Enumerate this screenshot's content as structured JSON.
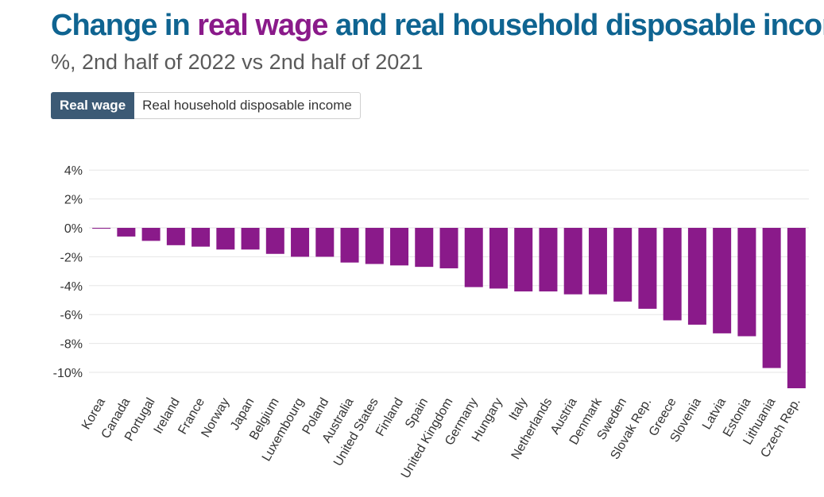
{
  "title": {
    "part1": "Change in ",
    "part2": "real wage",
    "part3": " and real household disposable income"
  },
  "subtitle": "%, 2nd half of 2022 vs 2nd half of 2021",
  "tabs": [
    {
      "label": "Real wage",
      "active": true
    },
    {
      "label": "Real household disposable income",
      "active": false
    }
  ],
  "colors": {
    "title_blue": "#0f6491",
    "title_purple": "#8a1a8a",
    "bar": "#8a1a8a",
    "tab_active_bg": "#3c5a75",
    "gridline": "#e6e6e6"
  },
  "chart_data": {
    "type": "bar",
    "title": "Change in real wage and real household disposable income",
    "subtitle": "%, 2nd half of 2022 vs 2nd half of 2021",
    "series_name": "Real wage",
    "categories": [
      "Korea",
      "Canada",
      "Portugal",
      "Ireland",
      "France",
      "Norway",
      "Japan",
      "Belgium",
      "Luxembourg",
      "Poland",
      "Australia",
      "United States",
      "Finland",
      "Spain",
      "United Kingdom",
      "Germany",
      "Hungary",
      "Italy",
      "Netherlands",
      "Austria",
      "Denmark",
      "Sweden",
      "Slovak Rep.",
      "Greece",
      "Slovenia",
      "Latvia",
      "Estonia",
      "Lithuania",
      "Czech Rep."
    ],
    "values": [
      0.0,
      -0.6,
      -0.9,
      -1.2,
      -1.3,
      -1.5,
      -1.5,
      -1.8,
      -2.0,
      -2.0,
      -2.4,
      -2.5,
      -2.6,
      -2.7,
      -2.8,
      -4.1,
      -4.2,
      -4.4,
      -4.4,
      -4.6,
      -4.6,
      -5.1,
      -5.6,
      -6.4,
      -6.7,
      -7.3,
      -7.5,
      -9.7,
      -11.1
    ],
    "yticks": [
      4,
      2,
      0,
      -2,
      -4,
      -6,
      -8,
      -10
    ],
    "ytick_labels": [
      "4%",
      "2%",
      "0%",
      "-2%",
      "-4%",
      "-6%",
      "-8%",
      "-10%"
    ],
    "ylim": [
      -11.5,
      4
    ],
    "xlabel": "",
    "ylabel": "",
    "grid": true
  }
}
